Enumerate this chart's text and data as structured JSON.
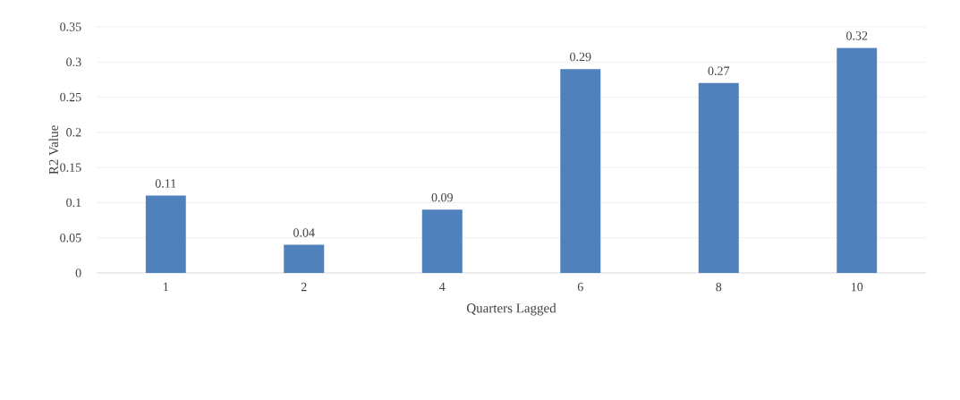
{
  "chart_data": {
    "type": "bar",
    "xlabel": "Quarters Lagged",
    "ylabel": "R2 Value",
    "categories": [
      "1",
      "2",
      "4",
      "6",
      "8",
      "10"
    ],
    "values": [
      0.11,
      0.04,
      0.09,
      0.29,
      0.27,
      0.32
    ],
    "color": "#4f81bd",
    "data_labels": true,
    "ylim": [
      0,
      0.35
    ],
    "yticks": [
      0,
      0.05,
      0.1,
      0.15,
      0.2,
      0.25,
      0.3,
      0.35
    ],
    "grid": "y"
  }
}
